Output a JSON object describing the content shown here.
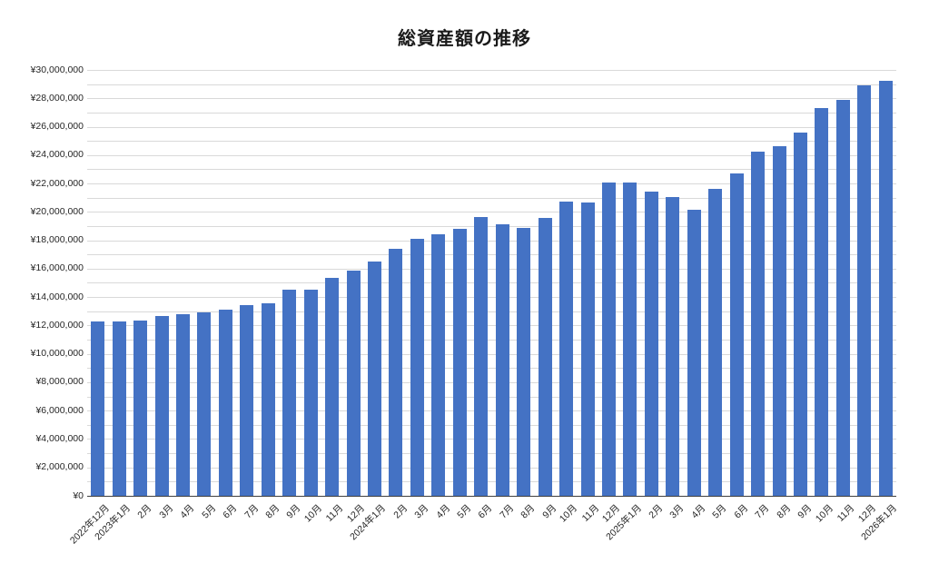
{
  "chart_data": {
    "type": "bar",
    "title": "総資産額の推移",
    "categories": [
      "2022年12月",
      "2023年1月",
      "2月",
      "3月",
      "4月",
      "5月",
      "6月",
      "7月",
      "8月",
      "9月",
      "10月",
      "11月",
      "12月",
      "2024年1月",
      "2月",
      "3月",
      "4月",
      "5月",
      "6月",
      "7月",
      "8月",
      "9月",
      "10月",
      "11月",
      "12月",
      "2025年1月",
      "2月",
      "3月",
      "4月",
      "5月",
      "6月",
      "7月",
      "8月",
      "9月",
      "10月",
      "11月",
      "12月",
      "2026年1月"
    ],
    "values": [
      12310000,
      12290000,
      12330000,
      12660000,
      12770000,
      12900000,
      13120000,
      13410000,
      13560000,
      14530000,
      14530000,
      15370000,
      15860000,
      16500000,
      17400000,
      18100000,
      18420000,
      18800000,
      19650000,
      19100000,
      18900000,
      19550000,
      20750000,
      20650000,
      22050000,
      22100000,
      21400000,
      21050000,
      20150000,
      21650000,
      22700000,
      24250000,
      24650000,
      25600000,
      27300000,
      27900000,
      28900000,
      29250000
    ],
    "xlabel": "",
    "ylabel": "",
    "ylim": [
      0,
      30000000
    ],
    "y_tick_interval": 2000000,
    "y_gridline_interval": 1000000,
    "y_tick_labels": [
      "¥0",
      "¥2,000,000",
      "¥4,000,000",
      "¥6,000,000",
      "¥8,000,000",
      "¥10,000,000",
      "¥12,000,000",
      "¥14,000,000",
      "¥16,000,000",
      "¥18,000,000",
      "¥20,000,000",
      "¥22,000,000",
      "¥24,000,000",
      "¥26,000,000",
      "¥28,000,000",
      "¥30,000,000"
    ],
    "grid": true,
    "legend": "none",
    "colors": {
      "bar": "#4472c4",
      "gridline": "#d9d9d9",
      "axis_line": "#404040",
      "text": "#262626",
      "background": "#ffffff"
    }
  }
}
